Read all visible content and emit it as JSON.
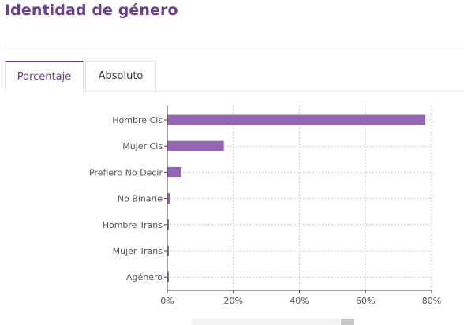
{
  "page": {
    "title": "Identidad de género"
  },
  "tabs": [
    {
      "label": "Porcentaje",
      "active": true
    },
    {
      "label": "Absoluto",
      "active": false
    }
  ],
  "colors": {
    "accent": "#6a3f8f",
    "bar": "#9465b3",
    "grid": "#cfcfcf"
  },
  "chart_data": {
    "type": "bar",
    "orientation": "horizontal",
    "categories": [
      "Hombre Cis",
      "Mujer Cis",
      "Prefiero No Decir",
      "No Binarie",
      "Hombre Trans",
      "Mujer Trans",
      "Agénero"
    ],
    "values": [
      78,
      17,
      4.2,
      0.8,
      0.2,
      0.2,
      0.1
    ],
    "xlim": [
      0,
      80
    ],
    "x_ticks": [
      0,
      20,
      40,
      60,
      80
    ],
    "x_tick_labels": [
      "0%",
      "20%",
      "40%",
      "60%",
      "80%"
    ],
    "grid": true,
    "legend": "none"
  }
}
